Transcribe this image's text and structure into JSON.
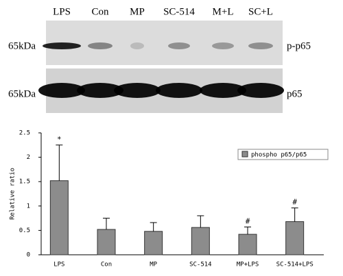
{
  "blot": {
    "lanes": [
      "LPS",
      "Con",
      "MP",
      "SC-514",
      "M+L",
      "SC+L"
    ],
    "rows": [
      {
        "size": "65kDa",
        "label": "p-p65"
      },
      {
        "size": "65kDa",
        "label": "p65"
      }
    ]
  },
  "chart_data": {
    "type": "bar",
    "y_label": "Relative ratio",
    "categories": [
      "LPS",
      "Con",
      "MP",
      "SC-514",
      "MP+LPS",
      "SC-514+LPS"
    ],
    "series": [
      {
        "name": "phospho p65/p65",
        "color": "#8c8c8c",
        "values": [
          1.52,
          0.52,
          0.48,
          0.56,
          0.42,
          0.68
        ],
        "errors": [
          0.73,
          0.23,
          0.18,
          0.24,
          0.15,
          0.28
        ],
        "value_annotations": [
          "*",
          null,
          null,
          null,
          "#",
          "#"
        ]
      }
    ],
    "ylim": [
      0,
      2.5
    ],
    "yticks": [
      0,
      0.5,
      1,
      1.5,
      2,
      2.5
    ],
    "legend": "upper right"
  }
}
